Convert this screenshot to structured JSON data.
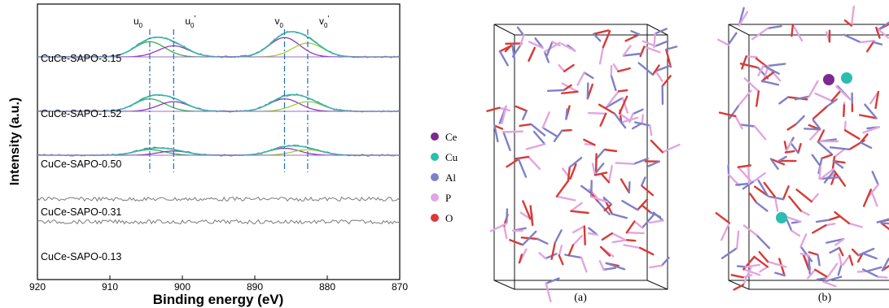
{
  "chart_data": {
    "type": "line",
    "xlabel": "Binding energy (eV)",
    "ylabel": "Intensity (a.u.)",
    "xlim": [
      920,
      870
    ],
    "x_reversed": true,
    "x_ticks": [
      "920",
      "910",
      "900",
      "890",
      "880",
      "870"
    ],
    "peak_labels": [
      "u0",
      "u0'",
      "v0",
      "v0'"
    ],
    "peak_positions": [
      904.5,
      901.2,
      885.9,
      882.7
    ],
    "series": [
      {
        "name": "CuCe-SAPO-3.15",
        "peak_heights": [
          0.55,
          0.4,
          0.7,
          0.5
        ]
      },
      {
        "name": "CuCe-SAPO-1.52",
        "peak_heights": [
          0.45,
          0.35,
          0.45,
          0.35
        ]
      },
      {
        "name": "CuCe-SAPO-0.50",
        "peak_heights": [
          0.2,
          0.15,
          0.25,
          0.2
        ]
      },
      {
        "name": "CuCe-SAPO-0.31",
        "peak_heights": [
          0,
          0,
          0,
          0
        ]
      },
      {
        "name": "CuCe-SAPO-0.13",
        "peak_heights": [
          0,
          0,
          0,
          0
        ]
      }
    ]
  },
  "structure_panels": {
    "labels": [
      "(a)",
      "(b)"
    ],
    "legend": [
      {
        "symbol": "Ce",
        "color": "#7b2a8f"
      },
      {
        "symbol": "Cu",
        "color": "#2bbdb0"
      },
      {
        "symbol": "Al",
        "color": "#7f80c8"
      },
      {
        "symbol": "P",
        "color": "#e2a5df"
      },
      {
        "symbol": "O",
        "color": "#d83a35"
      }
    ]
  }
}
